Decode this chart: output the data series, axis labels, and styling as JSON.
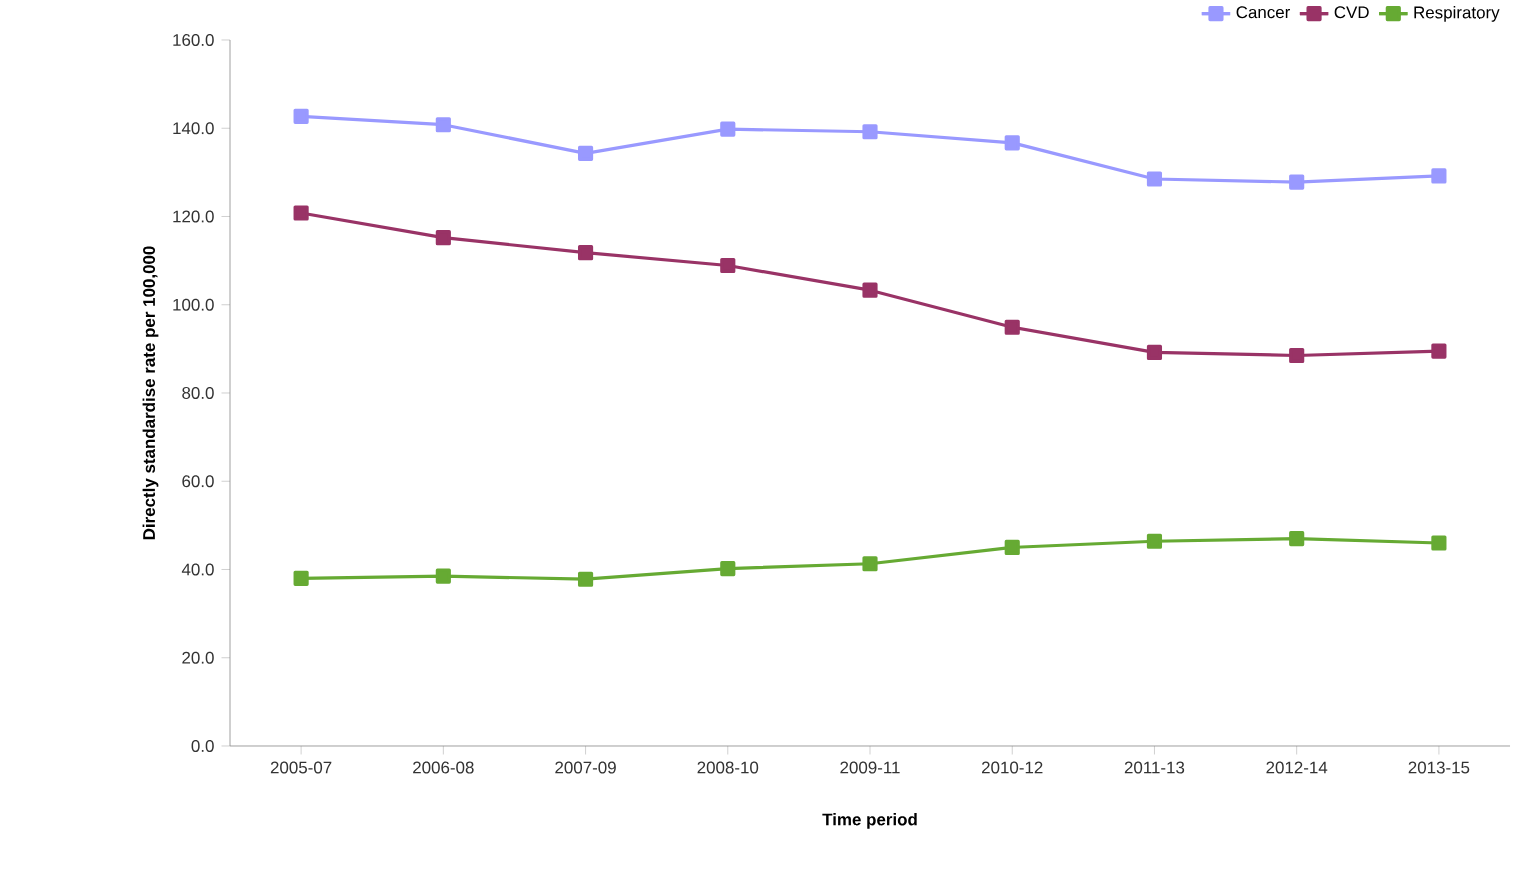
{
  "chart_data": {
    "type": "line",
    "xlabel": "Time period",
    "ylabel": "Directly standardise rate per 100,000",
    "categories": [
      "2005-07",
      "2006-08",
      "2007-09",
      "2008-10",
      "2009-11",
      "2010-12",
      "2011-13",
      "2012-14",
      "2013-15"
    ],
    "series": [
      {
        "name": "Cancer",
        "color": "#9999ff",
        "values": [
          142.7,
          140.8,
          134.3,
          139.8,
          139.2,
          136.7,
          128.5,
          127.8,
          129.2
        ]
      },
      {
        "name": "CVD",
        "color": "#993366",
        "values": [
          120.8,
          115.2,
          111.8,
          108.9,
          103.3,
          94.9,
          89.2,
          88.5,
          89.5
        ]
      },
      {
        "name": "Respiratory",
        "color": "#66aa33",
        "values": [
          38.0,
          38.5,
          37.8,
          40.2,
          41.3,
          45.0,
          46.4,
          47.0,
          46.0
        ]
      }
    ],
    "ylim": [
      0,
      160
    ],
    "yticks": [
      {
        "value": 0,
        "label": "0.0"
      },
      {
        "value": 20,
        "label": "20.0"
      },
      {
        "value": 40,
        "label": "40.0"
      },
      {
        "value": 60,
        "label": "60.0"
      },
      {
        "value": 80,
        "label": "80.0"
      },
      {
        "value": 100,
        "label": "100.0"
      },
      {
        "value": 120,
        "label": "120.0"
      },
      {
        "value": 140,
        "label": "140.0"
      },
      {
        "value": 160,
        "label": "160.0"
      }
    ],
    "grid": false,
    "legend": "top right",
    "marker": "square",
    "line_style": "solid"
  }
}
